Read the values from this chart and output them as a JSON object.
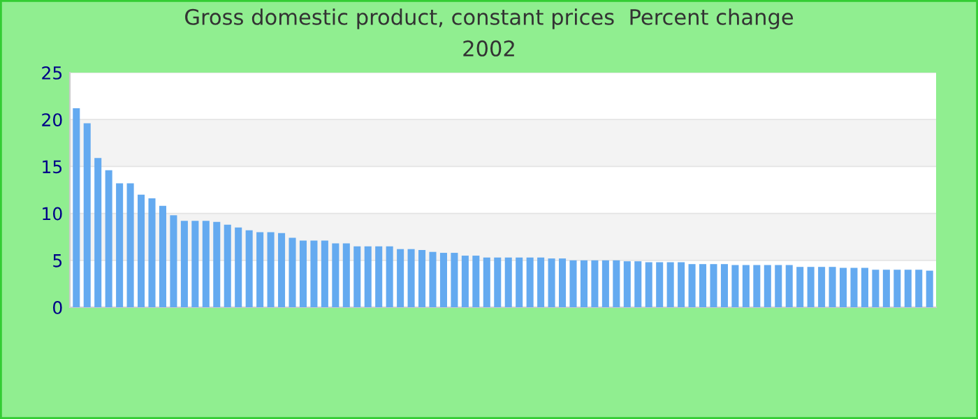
{
  "chart_data": {
    "type": "bar",
    "title": "Gross domestic product, constant prices  Percent change",
    "subtitle": "2002",
    "categories": [
      null,
      null,
      null,
      null,
      null,
      null,
      null,
      null,
      null,
      null,
      null,
      null,
      null,
      null,
      null,
      null,
      null,
      null,
      null,
      null,
      null,
      null,
      null,
      null,
      null,
      null,
      null,
      null,
      null,
      null,
      null,
      null,
      null,
      null,
      null,
      null,
      null,
      null,
      null,
      null,
      null,
      null,
      null,
      null,
      null,
      null,
      null,
      null,
      null,
      null,
      null,
      null,
      null,
      null,
      null,
      null,
      null,
      null,
      null,
      null,
      null,
      null,
      null,
      null,
      null,
      null,
      null,
      null,
      null,
      null,
      null,
      null,
      null,
      null,
      null,
      null,
      null,
      null,
      null,
      null
    ],
    "values": [
      21.2,
      19.6,
      15.9,
      14.6,
      13.2,
      13.2,
      12.0,
      11.6,
      10.8,
      9.8,
      9.2,
      9.2,
      9.2,
      9.1,
      8.8,
      8.5,
      8.2,
      8.0,
      8.0,
      7.9,
      7.4,
      7.1,
      7.1,
      7.1,
      6.8,
      6.8,
      6.5,
      6.5,
      6.5,
      6.5,
      6.2,
      6.2,
      6.1,
      5.9,
      5.8,
      5.8,
      5.5,
      5.5,
      5.3,
      5.3,
      5.3,
      5.3,
      5.3,
      5.3,
      5.2,
      5.2,
      5.0,
      5.0,
      5.0,
      5.0,
      5.0,
      4.9,
      4.9,
      4.8,
      4.8,
      4.8,
      4.8,
      4.6,
      4.6,
      4.6,
      4.6,
      4.5,
      4.5,
      4.5,
      4.5,
      4.5,
      4.5,
      4.3,
      4.3,
      4.3,
      4.3,
      4.2,
      4.2,
      4.2,
      4.0,
      4.0,
      4.0,
      4.0,
      4.0,
      3.9
    ],
    "color": "#64aaf0",
    "ylim": [
      0,
      25
    ],
    "yticks": [
      0,
      5,
      10,
      15,
      20,
      25
    ],
    "grid": "y",
    "tick_labels": "y"
  }
}
